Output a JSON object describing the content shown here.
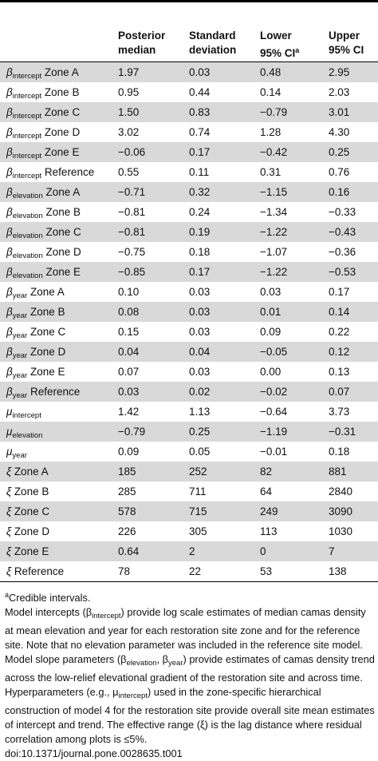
{
  "table": {
    "columns": [
      {
        "lines": [
          "Posterior",
          "median"
        ]
      },
      {
        "lines": [
          "Standard",
          "deviation"
        ]
      },
      {
        "lines": [
          "Lower",
          "95% CI"
        ],
        "note": "a"
      },
      {
        "lines": [
          "Upper",
          "95% CI"
        ]
      }
    ],
    "rows": [
      {
        "label": {
          "symbol": "β",
          "sub": "intercept",
          "zone": "Zone A"
        },
        "cells": [
          "1.97",
          "0.03",
          "0.48",
          "2.95"
        ]
      },
      {
        "label": {
          "symbol": "β",
          "sub": "intercept",
          "zone": "Zone B"
        },
        "cells": [
          "0.95",
          "0.44",
          "0.14",
          "2.03"
        ]
      },
      {
        "label": {
          "symbol": "β",
          "sub": "intercept",
          "zone": "Zone C"
        },
        "cells": [
          "1.50",
          "0.83",
          "−0.79",
          "3.01"
        ]
      },
      {
        "label": {
          "symbol": "β",
          "sub": "intercept",
          "zone": "Zone D"
        },
        "cells": [
          "3.02",
          "0.74",
          "1.28",
          "4.30"
        ]
      },
      {
        "label": {
          "symbol": "β",
          "sub": "intercept",
          "zone": "Zone E"
        },
        "cells": [
          "−0.06",
          "0.17",
          "−0.42",
          "0.25"
        ]
      },
      {
        "label": {
          "symbol": "β",
          "sub": "intercept",
          "zone": "Reference"
        },
        "cells": [
          "0.55",
          "0.11",
          "0.31",
          "0.76"
        ]
      },
      {
        "label": {
          "symbol": "β",
          "sub": "elevation",
          "zone": "Zone A"
        },
        "cells": [
          "−0.71",
          "0.32",
          "−1.15",
          "0.16"
        ]
      },
      {
        "label": {
          "symbol": "β",
          "sub": "elevation",
          "zone": "Zone B"
        },
        "cells": [
          "−0.81",
          "0.24",
          "−1.34",
          "−0.33"
        ]
      },
      {
        "label": {
          "symbol": "β",
          "sub": "elevation",
          "zone": "Zone C"
        },
        "cells": [
          "−0.81",
          "0.19",
          "−1.22",
          "−0.43"
        ]
      },
      {
        "label": {
          "symbol": "β",
          "sub": "elevation",
          "zone": "Zone D"
        },
        "cells": [
          "−0.75",
          "0.18",
          "−1.07",
          "−0.36"
        ]
      },
      {
        "label": {
          "symbol": "β",
          "sub": "elevation",
          "zone": "Zone E"
        },
        "cells": [
          "−0.85",
          "0.17",
          "−1.22",
          "−0.53"
        ]
      },
      {
        "label": {
          "symbol": "β",
          "sub": "year",
          "zone": "Zone A"
        },
        "cells": [
          "0.10",
          "0.03",
          "0.03",
          "0.17"
        ]
      },
      {
        "label": {
          "symbol": "β",
          "sub": "year",
          "zone": "Zone B"
        },
        "cells": [
          "0.08",
          "0.03",
          "0.01",
          "0.14"
        ]
      },
      {
        "label": {
          "symbol": "β",
          "sub": "year",
          "zone": "Zone C"
        },
        "cells": [
          "0.15",
          "0.03",
          "0.09",
          "0.22"
        ]
      },
      {
        "label": {
          "symbol": "β",
          "sub": "year",
          "zone": "Zone D"
        },
        "cells": [
          "0.04",
          "0.04",
          "−0.05",
          "0.12"
        ]
      },
      {
        "label": {
          "symbol": "β",
          "sub": "year",
          "zone": "Zone E"
        },
        "cells": [
          "0.07",
          "0.03",
          "0.00",
          "0.13"
        ]
      },
      {
        "label": {
          "symbol": "β",
          "sub": "year",
          "zone": "Reference"
        },
        "cells": [
          "0.03",
          "0.02",
          "−0.02",
          "0.07"
        ]
      },
      {
        "label": {
          "symbol": "μ",
          "sub": "intercept"
        },
        "cells": [
          "1.42",
          "1.13",
          "−0.64",
          "3.73"
        ]
      },
      {
        "label": {
          "symbol": "μ",
          "sub": "elevation"
        },
        "cells": [
          "−0.79",
          "0.25",
          "−1.19",
          "−0.31"
        ]
      },
      {
        "label": {
          "symbol": "μ",
          "sub": "year"
        },
        "cells": [
          "0.09",
          "0.05",
          "−0.01",
          "0.18"
        ]
      },
      {
        "label": {
          "symbol": "ξ",
          "zone": "Zone A"
        },
        "cells": [
          "185",
          "252",
          "82",
          "881"
        ]
      },
      {
        "label": {
          "symbol": "ξ",
          "zone": "Zone B"
        },
        "cells": [
          "285",
          "711",
          "64",
          "2840"
        ]
      },
      {
        "label": {
          "symbol": "ξ",
          "zone": "Zone C"
        },
        "cells": [
          "578",
          "715",
          "249",
          "3090"
        ]
      },
      {
        "label": {
          "symbol": "ξ",
          "zone": "Zone D"
        },
        "cells": [
          "226",
          "305",
          "113",
          "1030"
        ]
      },
      {
        "label": {
          "symbol": "ξ",
          "zone": "Zone E"
        },
        "cells": [
          "0.64",
          "2",
          "0",
          "7"
        ]
      },
      {
        "label": {
          "symbol": "ξ",
          "zone": "Reference"
        },
        "cells": [
          "78",
          "22",
          "53",
          "138"
        ]
      }
    ]
  },
  "footnotes": {
    "note": {
      "mark": "a",
      "text": "Credible intervals."
    },
    "paragraph": [
      "Model intercepts (",
      "β",
      {
        "sub": "intercept"
      },
      ") provide log scale estimates of median camas density at mean elevation and year for each restoration site zone and for the reference site. Note that no elevation parameter was included in the reference site model. Model slope parameters (",
      "β",
      {
        "sub": "elevation"
      },
      ", ",
      "β",
      {
        "sub": "year"
      },
      ") provide estimates of camas density trend across the low-relief elevational gradient of the restoration site and across time. Hyperparameters (e.g., ",
      "μ",
      {
        "sub": "intercept"
      },
      ") used in the zone-specific hierarchical construction of model 4 for the restoration site provide overall site mean estimates of intercept and trend. The effective range (ξ) is the lag distance where residual correlation among plots is ≤5%."
    ],
    "doi": "doi:10.1371/journal.pone.0028635.t001"
  }
}
